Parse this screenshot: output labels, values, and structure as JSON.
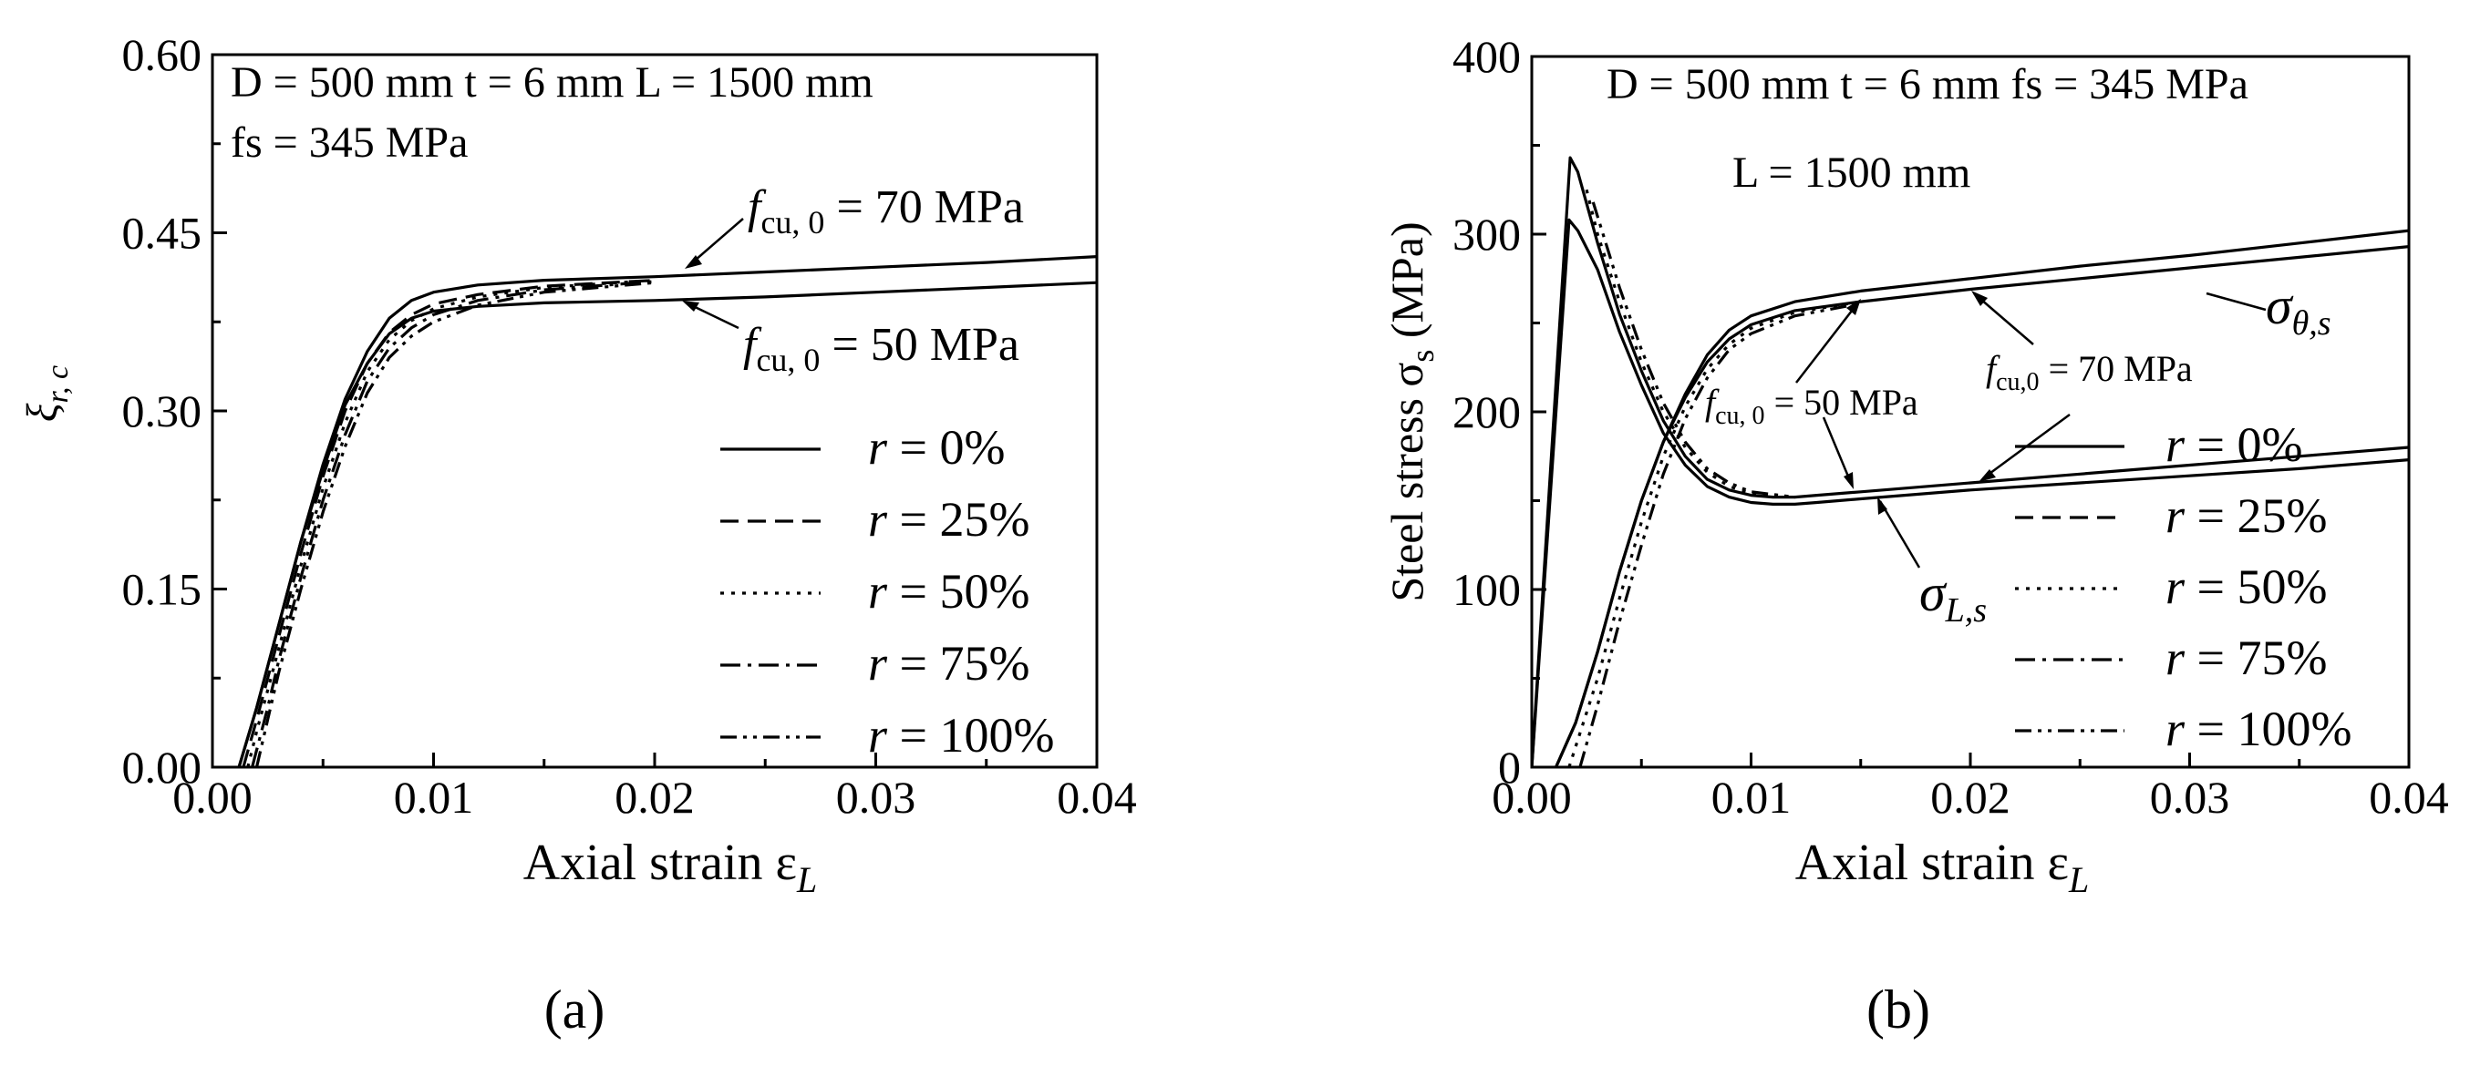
{
  "chart_data": [
    {
      "type": "line",
      "panel_label": "(a)",
      "ylabel": "ξr, c",
      "ylabel_main": "ξ",
      "ylabel_sub": "r, c",
      "xlabel": "Axial strain εL",
      "xlabel_main": "Axial strain ε",
      "xlabel_sub": "L",
      "xlim": [
        0,
        0.04
      ],
      "ylim": [
        0,
        0.6
      ],
      "xticks": [
        0,
        0.01,
        0.02,
        0.03,
        0.04
      ],
      "xtick_labels": [
        "0.00",
        "0.01",
        "0.02",
        "0.03",
        "0.04"
      ],
      "yticks": [
        0,
        0.15,
        0.3,
        0.45,
        0.6
      ],
      "ytick_labels": [
        "0.00",
        "0.15",
        "0.30",
        "0.45",
        "0.60"
      ],
      "annotations": [
        {
          "id": "params1",
          "text": "D = 500 mm t = 6 mm L = 1500 mm"
        },
        {
          "id": "params2",
          "text": "fs = 345 MPa"
        },
        {
          "id": "fcu70",
          "text": "fcu, 0 = 70 MPa",
          "main": "f",
          "sub": "cu, 0",
          "rest": " = 70 MPa",
          "x": 0.0205,
          "y": 0.413
        },
        {
          "id": "fcu50",
          "text": "fcu, 0 = 50 MPa",
          "main": "f",
          "sub": "cu, 0",
          "rest": " = 50 MPa",
          "x": 0.0215,
          "y": 0.393
        }
      ],
      "legend": [
        "r = 0%",
        "r = 25%",
        "r = 50%",
        "r = 75%",
        "r = 100%"
      ],
      "legend_position": "bottom-right",
      "series": [
        {
          "name": "r = 0%, fcu,0 = 70 MPa",
          "style": "solid",
          "x": [
            0.0012,
            0.002,
            0.003,
            0.004,
            0.005,
            0.006,
            0.007,
            0.008,
            0.009,
            0.01,
            0.012,
            0.015,
            0.02,
            0.025,
            0.03,
            0.035,
            0.04
          ],
          "y": [
            0.0,
            0.05,
            0.12,
            0.19,
            0.255,
            0.31,
            0.35,
            0.378,
            0.393,
            0.4,
            0.406,
            0.41,
            0.413,
            0.417,
            0.421,
            0.425,
            0.43
          ]
        },
        {
          "name": "r = 0%, fcu,0 = 50 MPa",
          "style": "solid",
          "x": [
            0.0012,
            0.002,
            0.003,
            0.004,
            0.005,
            0.006,
            0.007,
            0.008,
            0.009,
            0.01,
            0.012,
            0.015,
            0.02,
            0.025,
            0.03,
            0.035,
            0.04
          ],
          "y": [
            0.0,
            0.05,
            0.12,
            0.19,
            0.25,
            0.305,
            0.34,
            0.365,
            0.378,
            0.384,
            0.388,
            0.391,
            0.393,
            0.396,
            0.4,
            0.404,
            0.408
          ]
        },
        {
          "name": "r = 25%",
          "style": "dashed",
          "x": [
            0.0014,
            0.002,
            0.003,
            0.004,
            0.005,
            0.006,
            0.007,
            0.008,
            0.009,
            0.01,
            0.012,
            0.015,
            0.02
          ],
          "y": [
            0.0,
            0.04,
            0.11,
            0.18,
            0.245,
            0.3,
            0.34,
            0.366,
            0.381,
            0.39,
            0.398,
            0.405,
            0.41
          ]
        },
        {
          "name": "r = 50%",
          "style": "dotted",
          "x": [
            0.0016,
            0.002,
            0.003,
            0.004,
            0.005,
            0.006,
            0.007,
            0.008,
            0.009,
            0.01,
            0.012,
            0.015,
            0.02
          ],
          "y": [
            0.0,
            0.03,
            0.1,
            0.17,
            0.235,
            0.29,
            0.333,
            0.36,
            0.376,
            0.386,
            0.396,
            0.404,
            0.41
          ]
        },
        {
          "name": "r = 75%",
          "style": "dashdot",
          "x": [
            0.0018,
            0.0025,
            0.003,
            0.004,
            0.005,
            0.006,
            0.007,
            0.008,
            0.009,
            0.01,
            0.012,
            0.015,
            0.02
          ],
          "y": [
            0.0,
            0.05,
            0.09,
            0.16,
            0.225,
            0.28,
            0.325,
            0.353,
            0.37,
            0.381,
            0.393,
            0.402,
            0.409
          ]
        },
        {
          "name": "r = 100%",
          "style": "dashdotdot",
          "x": [
            0.002,
            0.0025,
            0.003,
            0.004,
            0.005,
            0.006,
            0.007,
            0.008,
            0.009,
            0.01,
            0.012,
            0.015,
            0.02
          ],
          "y": [
            0.0,
            0.04,
            0.08,
            0.15,
            0.215,
            0.27,
            0.315,
            0.345,
            0.363,
            0.375,
            0.389,
            0.4,
            0.408
          ]
        }
      ]
    },
    {
      "type": "line",
      "panel_label": "(b)",
      "ylabel": "Steel stress σs (MPa)",
      "ylabel_pre": "Steel stress σ",
      "ylabel_sub": "s",
      "ylabel_post": " (MPa)",
      "xlabel": "Axial strain εL",
      "xlabel_main": "Axial strain ε",
      "xlabel_sub": "L",
      "xlim": [
        0,
        0.04
      ],
      "ylim": [
        0,
        400
      ],
      "xticks": [
        0,
        0.01,
        0.02,
        0.03,
        0.04
      ],
      "xtick_labels": [
        "0.00",
        "0.01",
        "0.02",
        "0.03",
        "0.04"
      ],
      "yticks": [
        0,
        100,
        200,
        300,
        400
      ],
      "ytick_labels": [
        "0",
        "100",
        "200",
        "300",
        "400"
      ],
      "annotations": [
        {
          "id": "params1",
          "text": "D = 500 mm t = 6 mm fs = 345 MPa"
        },
        {
          "id": "params2",
          "text": "L = 1500 mm"
        },
        {
          "id": "sigma_theta",
          "text": "σθ,s",
          "main": "σ",
          "sub": "θ,s",
          "x": 0.0305,
          "y": 288
        },
        {
          "id": "sigma_L",
          "text": "σL,s",
          "main": "σ",
          "sub": "L,s",
          "x": 0.016,
          "y": 146
        },
        {
          "id": "fcu50",
          "text": "fcu, 0 = 50 MPa",
          "main": "f",
          "sub": "cu, 0",
          "rest": " = 50 MPa",
          "x1": 0.0135,
          "y1": 258,
          "x2": 0.0135,
          "y2": 157
        },
        {
          "id": "fcu70",
          "text": "fcu,0 = 70 MPa",
          "main": "f",
          "sub": "cu,0",
          "rest": " = 70 MPa",
          "x1": 0.0215,
          "y1": 271,
          "x2": 0.0205,
          "y2": 160
        }
      ],
      "legend": [
        "r = 0%",
        "r = 25%",
        "r = 50%",
        "r = 75%",
        "r = 100%"
      ],
      "legend_position": "bottom-right",
      "series": [
        {
          "name": "σθ,s r = 0% (70 MPa)",
          "style": "solid",
          "x": [
            0.0011,
            0.002,
            0.003,
            0.004,
            0.005,
            0.006,
            0.007,
            0.008,
            0.009,
            0.01,
            0.012,
            0.015,
            0.02,
            0.025,
            0.03,
            0.035,
            0.04
          ],
          "y": [
            0,
            25,
            65,
            110,
            150,
            183,
            210,
            232,
            246,
            254,
            262,
            268,
            275,
            282,
            288,
            295,
            302
          ]
        },
        {
          "name": "σθ,s r = 0% (50 MPa)",
          "style": "solid",
          "x": [
            0.0011,
            0.002,
            0.003,
            0.004,
            0.005,
            0.006,
            0.007,
            0.008,
            0.009,
            0.01,
            0.012,
            0.015,
            0.02,
            0.025,
            0.03,
            0.035,
            0.04
          ],
          "y": [
            0,
            25,
            65,
            110,
            150,
            183,
            208,
            228,
            241,
            249,
            257,
            262,
            269,
            275,
            281,
            287,
            293
          ]
        },
        {
          "name": "σθ,s r = 50%",
          "style": "dotted",
          "x": [
            0.0017,
            0.003,
            0.004,
            0.005,
            0.006,
            0.007,
            0.008,
            0.009,
            0.01,
            0.012,
            0.015
          ],
          "y": [
            0,
            50,
            95,
            138,
            175,
            203,
            224,
            238,
            247,
            256,
            262
          ]
        },
        {
          "name": "σθ,s r = 100%",
          "style": "dashdotdot",
          "x": [
            0.0022,
            0.003,
            0.004,
            0.005,
            0.006,
            0.007,
            0.008,
            0.009,
            0.01,
            0.012,
            0.015
          ],
          "y": [
            0,
            35,
            82,
            125,
            165,
            196,
            219,
            235,
            244,
            254,
            261
          ]
        },
        {
          "name": "σL,s r = 0% (70 MPa)",
          "style": "solid",
          "x": [
            0,
            0.00175,
            0.0021,
            0.003,
            0.004,
            0.005,
            0.006,
            0.007,
            0.008,
            0.009,
            0.01,
            0.011,
            0.012,
            0.013,
            0.015,
            0.02,
            0.025,
            0.03,
            0.035,
            0.04
          ],
          "y": [
            0,
            343,
            335,
            295,
            255,
            223,
            195,
            175,
            162,
            156,
            153,
            152,
            152,
            153,
            155,
            160,
            165,
            170,
            175,
            180
          ]
        },
        {
          "name": "σL,s r = 0% (50 MPa)",
          "style": "solid",
          "x": [
            0,
            0.0017,
            0.0021,
            0.003,
            0.004,
            0.005,
            0.006,
            0.007,
            0.008,
            0.009,
            0.01,
            0.011,
            0.012,
            0.013,
            0.015,
            0.02,
            0.025,
            0.03,
            0.035,
            0.04
          ],
          "y": [
            0,
            308,
            302,
            280,
            245,
            215,
            188,
            170,
            158,
            152,
            149,
            148,
            148,
            149,
            151,
            156,
            160,
            164,
            168,
            173
          ]
        },
        {
          "name": "σL,s r = 50%",
          "style": "dotted",
          "x": [
            0.0025,
            0.003,
            0.004,
            0.005,
            0.006,
            0.007,
            0.008,
            0.009,
            0.01,
            0.012
          ],
          "y": [
            325,
            300,
            262,
            228,
            200,
            180,
            166,
            158,
            154,
            152
          ]
        },
        {
          "name": "σL,s r = 100%",
          "style": "dashdotdot",
          "x": [
            0.0028,
            0.0035,
            0.004,
            0.005,
            0.006,
            0.007,
            0.008,
            0.009,
            0.01,
            0.012
          ],
          "y": [
            318,
            290,
            270,
            235,
            205,
            183,
            168,
            160,
            155,
            152
          ]
        }
      ]
    }
  ]
}
